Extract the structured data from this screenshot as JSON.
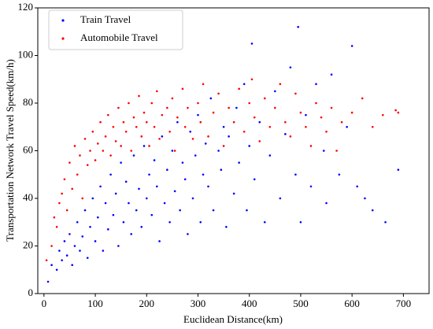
{
  "chart_data": {
    "type": "scatter",
    "xlabel": "Euclidean Distance(km)",
    "ylabel": "Transportation Network Travel Speed(km/h)",
    "xlim": [
      -12,
      750
    ],
    "ylim": [
      0,
      120
    ],
    "xticks": [
      0,
      100,
      200,
      300,
      400,
      500,
      600,
      700
    ],
    "yticks": [
      0,
      20,
      40,
      60,
      80,
      100,
      120
    ],
    "legend": "upper left",
    "series": [
      {
        "name": "Train Travel",
        "color": "#0000ff",
        "x": [
          8,
          15,
          25,
          30,
          35,
          40,
          45,
          50,
          55,
          60,
          65,
          70,
          75,
          80,
          85,
          90,
          95,
          100,
          105,
          110,
          115,
          120,
          125,
          130,
          135,
          140,
          145,
          150,
          155,
          160,
          165,
          170,
          175,
          180,
          185,
          190,
          195,
          200,
          205,
          210,
          215,
          220,
          225,
          230,
          235,
          240,
          245,
          250,
          255,
          260,
          265,
          270,
          275,
          280,
          285,
          290,
          295,
          300,
          305,
          310,
          315,
          320,
          325,
          330,
          340,
          345,
          350,
          355,
          360,
          370,
          375,
          380,
          390,
          395,
          400,
          405,
          410,
          420,
          430,
          440,
          450,
          460,
          470,
          480,
          490,
          495,
          500,
          510,
          520,
          530,
          545,
          550,
          560,
          575,
          590,
          600,
          610,
          625,
          640,
          665,
          690
        ],
        "values": [
          5,
          12,
          10,
          18,
          14,
          22,
          16,
          25,
          12,
          20,
          30,
          18,
          24,
          35,
          15,
          28,
          40,
          22,
          32,
          45,
          18,
          38,
          27,
          50,
          33,
          42,
          20,
          55,
          30,
          47,
          38,
          25,
          58,
          35,
          44,
          28,
          62,
          40,
          50,
          33,
          56,
          45,
          22,
          66,
          38,
          52,
          30,
          60,
          43,
          72,
          35,
          55,
          48,
          25,
          68,
          40,
          58,
          75,
          30,
          50,
          63,
          45,
          82,
          35,
          60,
          52,
          70,
          28,
          66,
          42,
          78,
          55,
          88,
          35,
          62,
          105,
          48,
          72,
          30,
          58,
          85,
          40,
          67,
          95,
          50,
          112,
          30,
          75,
          45,
          88,
          60,
          38,
          92,
          50,
          70,
          104,
          45,
          40,
          35,
          30,
          52
        ]
      },
      {
        "name": "Automobile Travel",
        "color": "#ff0000",
        "x": [
          5,
          15,
          20,
          25,
          30,
          35,
          40,
          45,
          50,
          55,
          60,
          65,
          70,
          75,
          80,
          85,
          90,
          95,
          100,
          105,
          110,
          115,
          120,
          125,
          130,
          135,
          140,
          145,
          150,
          155,
          160,
          165,
          170,
          175,
          180,
          185,
          190,
          195,
          200,
          205,
          210,
          215,
          220,
          225,
          230,
          240,
          245,
          250,
          255,
          260,
          270,
          275,
          280,
          290,
          300,
          305,
          310,
          320,
          330,
          340,
          350,
          360,
          370,
          380,
          390,
          400,
          405,
          410,
          420,
          430,
          440,
          450,
          460,
          470,
          480,
          490,
          500,
          510,
          520,
          530,
          540,
          550,
          560,
          570,
          580,
          600,
          620,
          640,
          660,
          685,
          690
        ],
        "values": [
          14,
          20,
          32,
          28,
          38,
          42,
          48,
          35,
          55,
          44,
          62,
          50,
          58,
          40,
          65,
          54,
          60,
          68,
          56,
          63,
          72,
          60,
          66,
          75,
          58,
          70,
          64,
          78,
          62,
          72,
          68,
          80,
          60,
          74,
          70,
          83,
          66,
          76,
          72,
          62,
          80,
          70,
          85,
          65,
          75,
          78,
          68,
          82,
          60,
          74,
          86,
          70,
          78,
          65,
          80,
          72,
          88,
          66,
          76,
          84,
          62,
          78,
          72,
          86,
          68,
          80,
          90,
          74,
          64,
          82,
          70,
          78,
          88,
          72,
          66,
          84,
          76,
          70,
          62,
          80,
          74,
          68,
          78,
          60,
          72,
          76,
          82,
          70,
          75,
          77,
          76
        ]
      }
    ]
  }
}
